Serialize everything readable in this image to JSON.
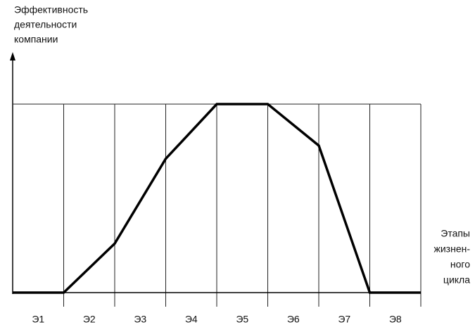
{
  "chart_data": {
    "type": "line",
    "y_label": [
      "Эффективность",
      "деятельности",
      "компании"
    ],
    "x_label": [
      "Этапы",
      "жизнен-",
      "ного",
      "цикла"
    ],
    "categories": [
      "Э1",
      "Э2",
      "Э3",
      "Э4",
      "Э5",
      "Э6",
      "Э7",
      "Э8"
    ],
    "x": [
      0,
      1,
      2,
      3,
      4,
      5,
      6,
      7,
      8
    ],
    "values": [
      0,
      0,
      26,
      71,
      100,
      100,
      78,
      0,
      0
    ],
    "color": "#000000",
    "xlim": [
      0,
      8
    ],
    "ylim": [
      0,
      100
    ],
    "grid": true
  }
}
